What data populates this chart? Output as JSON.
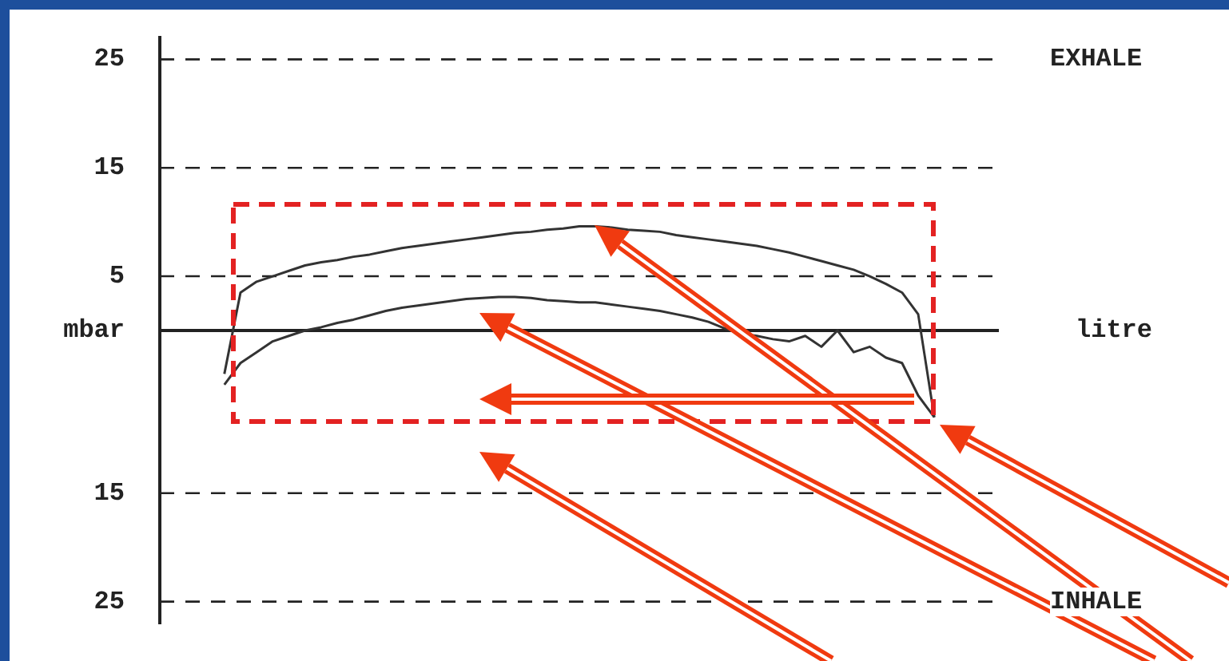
{
  "chart_data": {
    "type": "line",
    "categories": [
      null,
      null,
      null,
      null,
      null,
      null,
      null,
      null,
      null,
      null,
      null,
      null,
      null,
      null,
      null,
      null,
      null,
      null,
      null,
      null,
      null,
      null,
      null,
      null,
      null,
      null,
      null,
      null,
      null,
      null,
      null,
      null,
      null,
      null,
      null,
      null,
      null,
      null,
      null,
      null,
      null,
      null,
      null,
      null,
      null,
      null,
      null,
      null,
      null,
      null,
      null,
      null,
      null
    ],
    "series": [
      {
        "color": "#333333",
        "values": [
          null,
          null,
          null,
          null,
          -4,
          3.5,
          4.5,
          5,
          5.5,
          6,
          6.3,
          6.5,
          6.8,
          7,
          7.3,
          7.6,
          7.8,
          8,
          8.2,
          8.4,
          8.6,
          8.8,
          9,
          9.1,
          9.3,
          9.4,
          9.6,
          9.6,
          9.5,
          9.3,
          9.2,
          9.1,
          8.8,
          8.6,
          8.4,
          8.2,
          8,
          7.8,
          7.5,
          7.2,
          6.8,
          6.4,
          6,
          5.6,
          5,
          4.3,
          3.5,
          1.5,
          -8,
          null,
          null,
          null,
          null
        ]
      },
      {
        "color": "#333333",
        "values": [
          null,
          null,
          null,
          null,
          -5,
          -3,
          -2,
          -1,
          -0.5,
          0,
          0.3,
          0.7,
          1,
          1.4,
          1.8,
          2.1,
          2.3,
          2.5,
          2.7,
          2.9,
          3,
          3.1,
          3.1,
          3,
          2.8,
          2.7,
          2.6,
          2.6,
          2.4,
          2.2,
          2,
          1.8,
          1.5,
          1.2,
          0.8,
          0.2,
          -0.3,
          -0.5,
          -0.8,
          -1,
          -0.5,
          -1.5,
          0,
          -2,
          -1.5,
          -2.5,
          -3,
          -6,
          -8,
          null,
          null,
          null,
          null
        ]
      }
    ],
    "ylim": [
      -27,
      27
    ],
    "yticks": [
      25,
      15,
      5,
      {
        "value": 0,
        "label": "mbar"
      },
      {
        "value": -15,
        "label": "15"
      },
      {
        "value": -25,
        "label": "25"
      }
    ],
    "xlabel": "litre",
    "annotations": [
      "EXHALE",
      "INHALE"
    ],
    "grid": "y",
    "legend": false,
    "marker": "none",
    "line_style": "solid",
    "tick_labels": "y"
  }
}
